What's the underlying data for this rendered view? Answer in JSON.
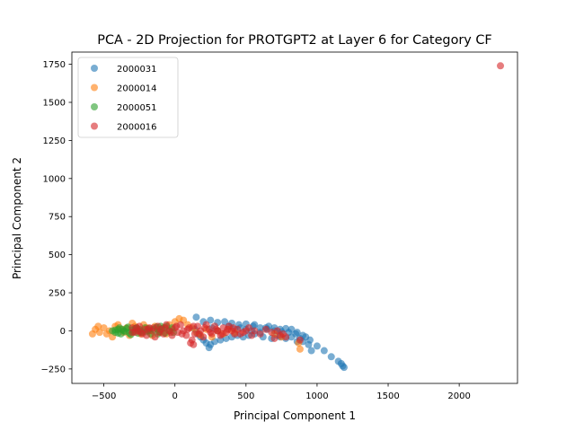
{
  "chart_data": {
    "type": "scatter",
    "title": "PCA - 2D Projection for PROTGPT2 at Layer 6 for Category CF",
    "xlabel": "Principal Component 1",
    "ylabel": "Principal Component 2",
    "xlim": [
      -725,
      2410
    ],
    "ylim": [
      -345,
      1830
    ],
    "xticks": [
      -500,
      0,
      500,
      1000,
      1500,
      2000
    ],
    "yticks": [
      -250,
      0,
      250,
      500,
      750,
      1000,
      1250,
      1500,
      1750
    ],
    "grid": false,
    "legend_position": "top-left",
    "series": [
      {
        "name": "2000031",
        "color": "#1f77b4",
        "points": [
          [
            150,
            90
          ],
          [
            200,
            60
          ],
          [
            250,
            70
          ],
          [
            300,
            55
          ],
          [
            350,
            60
          ],
          [
            400,
            50
          ],
          [
            450,
            40
          ],
          [
            500,
            45
          ],
          [
            550,
            30
          ],
          [
            600,
            20
          ],
          [
            650,
            10
          ],
          [
            700,
            0
          ],
          [
            750,
            -5
          ],
          [
            800,
            -10
          ],
          [
            850,
            -20
          ],
          [
            900,
            -30
          ],
          [
            950,
            -60
          ],
          [
            1000,
            -100
          ],
          [
            1050,
            -130
          ],
          [
            1100,
            -170
          ],
          [
            1150,
            -200
          ],
          [
            1180,
            -230
          ],
          [
            1190,
            -240
          ],
          [
            1170,
            -215
          ],
          [
            960,
            -130
          ],
          [
            940,
            -90
          ],
          [
            880,
            -50
          ],
          [
            820,
            -40
          ],
          [
            780,
            -50
          ],
          [
            720,
            -30
          ],
          [
            680,
            -50
          ],
          [
            620,
            -40
          ],
          [
            560,
            -20
          ],
          [
            520,
            -30
          ],
          [
            480,
            -40
          ],
          [
            440,
            -30
          ],
          [
            400,
            -40
          ],
          [
            360,
            -50
          ],
          [
            320,
            -60
          ],
          [
            280,
            -70
          ],
          [
            250,
            -90
          ],
          [
            240,
            -110
          ],
          [
            220,
            -80
          ],
          [
            200,
            -60
          ],
          [
            180,
            -40
          ],
          [
            160,
            -20
          ],
          [
            140,
            10
          ],
          [
            260,
            20
          ],
          [
            420,
            10
          ],
          [
            460,
            20
          ],
          [
            540,
            0
          ],
          [
            600,
            -10
          ],
          [
            640,
            20
          ],
          [
            700,
            20
          ],
          [
            740,
            10
          ],
          [
            780,
            15
          ],
          [
            820,
            10
          ],
          [
            860,
            -10
          ],
          [
            900,
            -70
          ],
          [
            920,
            -40
          ],
          [
            300,
            0
          ],
          [
            380,
            30
          ],
          [
            500,
            10
          ],
          [
            560,
            40
          ],
          [
            660,
            30
          ],
          [
            740,
            -40
          ],
          [
            860,
            -70
          ]
        ]
      },
      {
        "name": "2000014",
        "color": "#ff7f0e",
        "points": [
          [
            -560,
            10
          ],
          [
            -530,
            -10
          ],
          [
            -500,
            20
          ],
          [
            -480,
            -20
          ],
          [
            -460,
            0
          ],
          [
            -440,
            -40
          ],
          [
            -420,
            30
          ],
          [
            -400,
            40
          ],
          [
            -380,
            10
          ],
          [
            -360,
            -10
          ],
          [
            -340,
            20
          ],
          [
            -320,
            -30
          ],
          [
            -300,
            50
          ],
          [
            -280,
            30
          ],
          [
            -260,
            10
          ],
          [
            -240,
            -20
          ],
          [
            -220,
            40
          ],
          [
            -200,
            20
          ],
          [
            -180,
            0
          ],
          [
            -160,
            -30
          ],
          [
            -140,
            30
          ],
          [
            -120,
            10
          ],
          [
            -100,
            -10
          ],
          [
            -80,
            20
          ],
          [
            -60,
            -20
          ],
          [
            -40,
            40
          ],
          [
            -20,
            10
          ],
          [
            0,
            60
          ],
          [
            30,
            80
          ],
          [
            60,
            70
          ],
          [
            90,
            40
          ],
          [
            120,
            20
          ],
          [
            150,
            -10
          ],
          [
            180,
            -30
          ],
          [
            220,
            10
          ],
          [
            260,
            -40
          ],
          [
            300,
            0
          ],
          [
            340,
            -20
          ],
          [
            380,
            10
          ],
          [
            420,
            -10
          ],
          [
            700,
            -20
          ],
          [
            750,
            -40
          ],
          [
            880,
            -120
          ],
          [
            870,
            -80
          ],
          [
            -580,
            -20
          ],
          [
            -540,
            30
          ]
        ]
      },
      {
        "name": "2000051",
        "color": "#2ca02c",
        "points": [
          [
            -440,
            0
          ],
          [
            -420,
            -10
          ],
          [
            -400,
            10
          ],
          [
            -390,
            20
          ],
          [
            -380,
            -20
          ],
          [
            -360,
            0
          ],
          [
            -340,
            15
          ],
          [
            -320,
            -15
          ],
          [
            -300,
            5
          ],
          [
            -290,
            -5
          ],
          [
            -270,
            20
          ],
          [
            -250,
            10
          ],
          [
            -230,
            -10
          ],
          [
            -210,
            20
          ],
          [
            -190,
            0
          ],
          [
            -170,
            -20
          ],
          [
            -150,
            10
          ],
          [
            -130,
            25
          ],
          [
            -110,
            -5
          ],
          [
            -90,
            15
          ],
          [
            -70,
            -15
          ],
          [
            -60,
            30
          ],
          [
            -40,
            0
          ],
          [
            -20,
            20
          ],
          [
            -10,
            -10
          ],
          [
            -420,
            5
          ],
          [
            -400,
            -15
          ],
          [
            -370,
            10
          ],
          [
            -350,
            -5
          ],
          [
            -330,
            25
          ],
          [
            -310,
            -25
          ],
          [
            -280,
            15
          ],
          [
            -260,
            -15
          ],
          [
            -240,
            0
          ],
          [
            -200,
            -5
          ],
          [
            -180,
            15
          ],
          [
            -120,
            -20
          ],
          [
            -100,
            30
          ]
        ]
      },
      {
        "name": "2000016",
        "color": "#d62728",
        "points": [
          [
            -300,
            20
          ],
          [
            -280,
            -10
          ],
          [
            -260,
            0
          ],
          [
            -250,
            30
          ],
          [
            -230,
            -20
          ],
          [
            -210,
            10
          ],
          [
            -200,
            -30
          ],
          [
            -180,
            20
          ],
          [
            -160,
            0
          ],
          [
            -140,
            -40
          ],
          [
            -120,
            30
          ],
          [
            -100,
            10
          ],
          [
            -80,
            -20
          ],
          [
            -60,
            40
          ],
          [
            -40,
            0
          ],
          [
            -20,
            -30
          ],
          [
            0,
            20
          ],
          [
            20,
            -10
          ],
          [
            40,
            40
          ],
          [
            60,
            0
          ],
          [
            80,
            -30
          ],
          [
            100,
            20
          ],
          [
            120,
            -60
          ],
          [
            140,
            -20
          ],
          [
            160,
            30
          ],
          [
            180,
            0
          ],
          [
            200,
            -40
          ],
          [
            220,
            40
          ],
          [
            240,
            10
          ],
          [
            260,
            -20
          ],
          [
            280,
            30
          ],
          [
            300,
            0
          ],
          [
            320,
            -30
          ],
          [
            340,
            20
          ],
          [
            360,
            -10
          ],
          [
            380,
            30
          ],
          [
            400,
            0
          ],
          [
            420,
            -20
          ],
          [
            440,
            10
          ],
          [
            480,
            -10
          ],
          [
            520,
            20
          ],
          [
            560,
            0
          ],
          [
            600,
            -20
          ],
          [
            640,
            10
          ],
          [
            680,
            -10
          ],
          [
            700,
            -50
          ],
          [
            720,
            0
          ],
          [
            740,
            -30
          ],
          [
            760,
            -20
          ],
          [
            780,
            -40
          ],
          [
            880,
            -60
          ],
          [
            130,
            -90
          ],
          [
            110,
            -80
          ],
          [
            -300,
            -10
          ],
          [
            -270,
            20
          ],
          [
            -240,
            -10
          ],
          [
            -190,
            10
          ],
          [
            -150,
            20
          ],
          [
            -110,
            -10
          ],
          [
            -70,
            20
          ],
          [
            -30,
            -10
          ],
          [
            10,
            30
          ],
          [
            50,
            -20
          ],
          [
            90,
            10
          ],
          [
            130,
            30
          ],
          [
            170,
            -20
          ],
          [
            210,
            20
          ],
          [
            250,
            -10
          ],
          [
            290,
            10
          ],
          [
            330,
            -20
          ],
          [
            370,
            10
          ],
          [
            410,
            20
          ],
          [
            460,
            -20
          ],
          [
            500,
            0
          ],
          [
            540,
            -30
          ],
          [
            2290,
            1740
          ]
        ]
      }
    ]
  }
}
